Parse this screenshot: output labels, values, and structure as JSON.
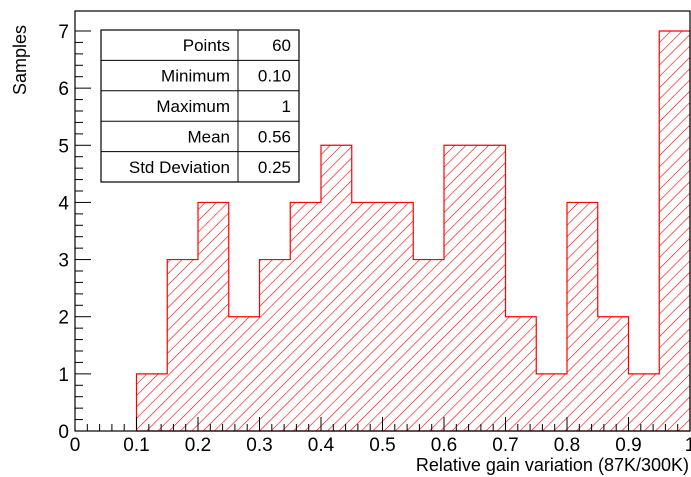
{
  "chart_data": {
    "type": "bar",
    "xlabel": "Relative gain variation (87K/300K)",
    "ylabel": "Samples",
    "xlim": [
      0,
      1
    ],
    "ylim": [
      0,
      7.35
    ],
    "x_ticks": [
      "0",
      "0.1",
      "0.2",
      "0.3",
      "0.4",
      "0.5",
      "0.6",
      "0.7",
      "0.8",
      "0.9",
      "1"
    ],
    "y_ticks": [
      "0",
      "1",
      "2",
      "3",
      "4",
      "5",
      "6",
      "7"
    ],
    "bin_width": 0.05,
    "bins": [
      {
        "x0": 0.0,
        "value": 0
      },
      {
        "x0": 0.05,
        "value": 0
      },
      {
        "x0": 0.1,
        "value": 1
      },
      {
        "x0": 0.15,
        "value": 3
      },
      {
        "x0": 0.2,
        "value": 4
      },
      {
        "x0": 0.25,
        "value": 2
      },
      {
        "x0": 0.3,
        "value": 3
      },
      {
        "x0": 0.35,
        "value": 4
      },
      {
        "x0": 0.4,
        "value": 5
      },
      {
        "x0": 0.45,
        "value": 4
      },
      {
        "x0": 0.5,
        "value": 4
      },
      {
        "x0": 0.55,
        "value": 3
      },
      {
        "x0": 0.6,
        "value": 5
      },
      {
        "x0": 0.65,
        "value": 5
      },
      {
        "x0": 0.7,
        "value": 2
      },
      {
        "x0": 0.75,
        "value": 1
      },
      {
        "x0": 0.8,
        "value": 4
      },
      {
        "x0": 0.85,
        "value": 2
      },
      {
        "x0": 0.9,
        "value": 1
      },
      {
        "x0": 0.95,
        "value": 7
      }
    ],
    "colors": {
      "bars": "#ff0000",
      "axes": "#000000"
    },
    "grid": false
  },
  "stats_box": [
    {
      "label": "Points",
      "value": "60"
    },
    {
      "label": "Minimum",
      "value": "0.10"
    },
    {
      "label": "Maximum",
      "value": "1"
    },
    {
      "label": "Mean",
      "value": "0.56"
    },
    {
      "label": "Std Deviation",
      "value": "0.25"
    }
  ]
}
